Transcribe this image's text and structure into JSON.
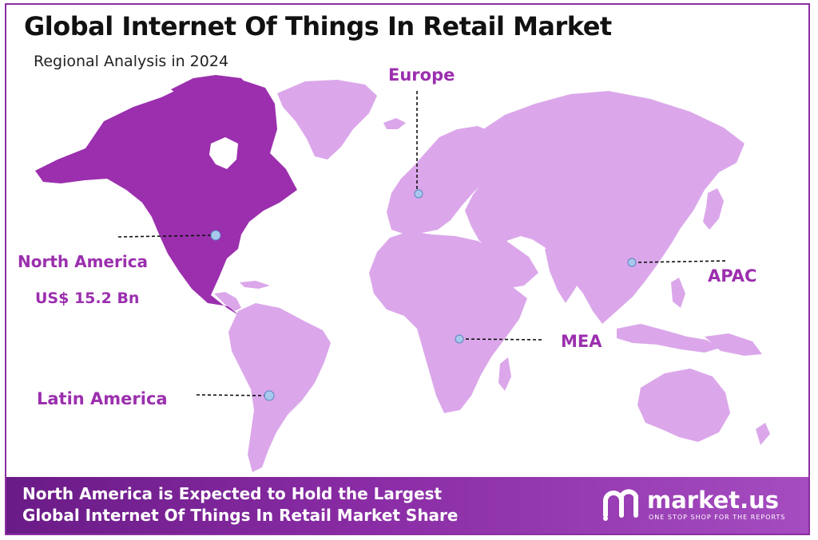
{
  "title": "Global Internet Of Things In Retail Market",
  "subtitle": "Regional Analysis in 2024",
  "regions": {
    "europe": "Europe",
    "north_america": "North America",
    "north_america_value": "US$ 15.2 Bn",
    "apac": "APAC",
    "mea": "MEA",
    "latin_america": "Latin America"
  },
  "colors": {
    "highlight": "#9b2fae",
    "land": "#dba7ea",
    "marker": "#a8c8ee",
    "footer": "#7b2898"
  },
  "footer": {
    "line1": "North America is Expected to Hold the Largest",
    "line2": "Global Internet Of Things In Retail Market Share"
  },
  "logo": {
    "name": "market.us",
    "tagline": "ONE STOP SHOP FOR THE REPORTS"
  }
}
